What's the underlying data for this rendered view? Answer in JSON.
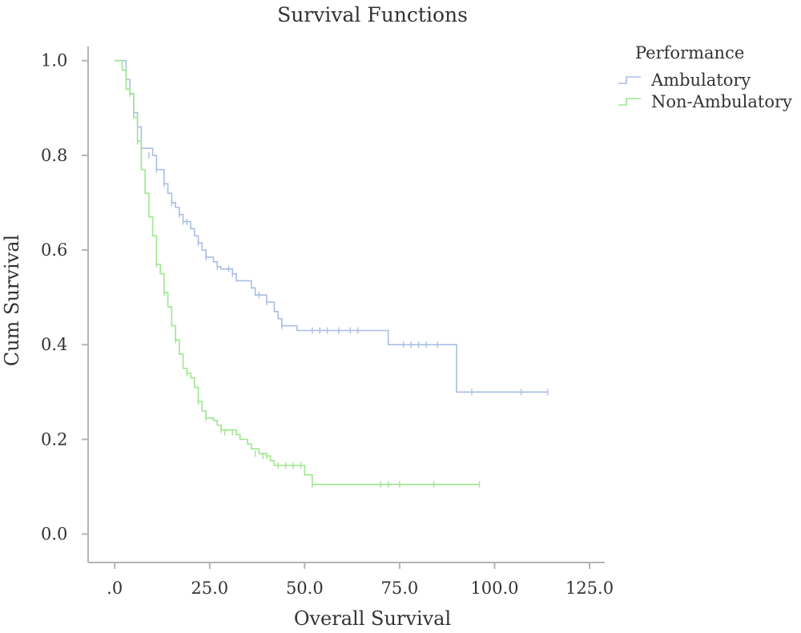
{
  "chart_data": {
    "type": "line",
    "subtype": "kaplan-meier step",
    "title": "Survival Functions",
    "xlabel": "Overall Survival",
    "ylabel": "Cum Survival",
    "xlim": [
      -7,
      129
    ],
    "ylim": [
      -0.06,
      1.03
    ],
    "x_ticks": [
      0,
      25,
      50,
      75,
      100,
      125
    ],
    "x_tick_labels": [
      ".0",
      "25.0",
      "50.0",
      "75.0",
      "100.0",
      "125.0"
    ],
    "y_ticks": [
      0,
      0.2,
      0.4,
      0.6,
      0.8,
      1.0
    ],
    "y_tick_labels": [
      "0.0",
      "0.2",
      "0.4",
      "0.6",
      "0.8",
      "1.0"
    ],
    "grid": false,
    "legend": {
      "title": "Performance",
      "placement": "top-right"
    },
    "series": [
      {
        "name": "Ambulatory",
        "color": "#a9bde6",
        "steps": [
          [
            0,
            1.0
          ],
          [
            3,
            0.96
          ],
          [
            4,
            0.93
          ],
          [
            5,
            0.89
          ],
          [
            6,
            0.86
          ],
          [
            7,
            0.815
          ],
          [
            10,
            0.8
          ],
          [
            11,
            0.77
          ],
          [
            13,
            0.74
          ],
          [
            14,
            0.72
          ],
          [
            15,
            0.7
          ],
          [
            16,
            0.69
          ],
          [
            17,
            0.675
          ],
          [
            18,
            0.66
          ],
          [
            20,
            0.645
          ],
          [
            21,
            0.63
          ],
          [
            22,
            0.615
          ],
          [
            23,
            0.6
          ],
          [
            24,
            0.585
          ],
          [
            26,
            0.575
          ],
          [
            27,
            0.565
          ],
          [
            28,
            0.56
          ],
          [
            31,
            0.55
          ],
          [
            32,
            0.535
          ],
          [
            36,
            0.52
          ],
          [
            37,
            0.505
          ],
          [
            40,
            0.49
          ],
          [
            42,
            0.47
          ],
          [
            43,
            0.455
          ],
          [
            44,
            0.44
          ],
          [
            48,
            0.43
          ],
          [
            72,
            0.4
          ],
          [
            90,
            0.3
          ],
          [
            114,
            0.3
          ]
        ],
        "censored": [
          [
            5,
            0.89
          ],
          [
            6,
            0.86
          ],
          [
            9,
            0.8
          ],
          [
            11,
            0.77
          ],
          [
            13,
            0.74
          ],
          [
            15,
            0.7
          ],
          [
            17,
            0.675
          ],
          [
            18,
            0.66
          ],
          [
            19,
            0.66
          ],
          [
            22,
            0.615
          ],
          [
            24,
            0.585
          ],
          [
            27,
            0.565
          ],
          [
            30,
            0.56
          ],
          [
            31,
            0.55
          ],
          [
            38,
            0.505
          ],
          [
            40,
            0.49
          ],
          [
            44,
            0.44
          ],
          [
            52,
            0.43
          ],
          [
            54,
            0.43
          ],
          [
            56,
            0.43
          ],
          [
            59,
            0.43
          ],
          [
            62,
            0.43
          ],
          [
            64,
            0.43
          ],
          [
            76,
            0.4
          ],
          [
            78,
            0.4
          ],
          [
            80,
            0.4
          ],
          [
            82,
            0.4
          ],
          [
            85,
            0.4
          ],
          [
            94,
            0.3
          ],
          [
            107,
            0.3
          ],
          [
            114,
            0.3
          ]
        ]
      },
      {
        "name": "Non-Ambulatory",
        "color": "#9ee68f",
        "steps": [
          [
            0,
            1.0
          ],
          [
            2,
            0.98
          ],
          [
            3,
            0.94
          ],
          [
            4,
            0.93
          ],
          [
            5,
            0.88
          ],
          [
            6,
            0.83
          ],
          [
            7,
            0.77
          ],
          [
            8,
            0.72
          ],
          [
            9,
            0.67
          ],
          [
            10,
            0.63
          ],
          [
            11,
            0.57
          ],
          [
            12,
            0.55
          ],
          [
            13,
            0.51
          ],
          [
            14,
            0.48
          ],
          [
            15,
            0.44
          ],
          [
            16,
            0.41
          ],
          [
            17,
            0.38
          ],
          [
            18,
            0.35
          ],
          [
            19,
            0.34
          ],
          [
            20,
            0.33
          ],
          [
            21,
            0.31
          ],
          [
            22,
            0.28
          ],
          [
            23,
            0.26
          ],
          [
            24,
            0.245
          ],
          [
            26,
            0.24
          ],
          [
            27,
            0.23
          ],
          [
            28,
            0.22
          ],
          [
            32,
            0.21
          ],
          [
            33,
            0.2
          ],
          [
            35,
            0.19
          ],
          [
            36,
            0.18
          ],
          [
            38,
            0.17
          ],
          [
            40,
            0.165
          ],
          [
            41,
            0.155
          ],
          [
            42,
            0.145
          ],
          [
            50,
            0.125
          ],
          [
            52,
            0.105
          ],
          [
            96,
            0.105
          ]
        ],
        "censored": [
          [
            4,
            0.93
          ],
          [
            6,
            0.83
          ],
          [
            11,
            0.57
          ],
          [
            13,
            0.51
          ],
          [
            16,
            0.41
          ],
          [
            19,
            0.34
          ],
          [
            22,
            0.28
          ],
          [
            24,
            0.245
          ],
          [
            28,
            0.22
          ],
          [
            29,
            0.215
          ],
          [
            31,
            0.215
          ],
          [
            37,
            0.17
          ],
          [
            39,
            0.165
          ],
          [
            40,
            0.165
          ],
          [
            43,
            0.145
          ],
          [
            45,
            0.145
          ],
          [
            47,
            0.145
          ],
          [
            49,
            0.145
          ],
          [
            52,
            0.105
          ],
          [
            70,
            0.105
          ],
          [
            72,
            0.105
          ],
          [
            75,
            0.105
          ],
          [
            84,
            0.105
          ],
          [
            96,
            0.105
          ]
        ]
      }
    ]
  }
}
